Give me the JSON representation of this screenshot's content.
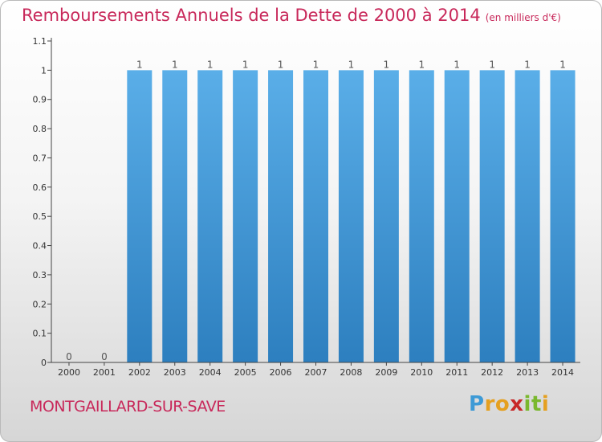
{
  "header": {
    "title": "Remboursements Annuels de la Dette de 2000 à 2014",
    "unit": "(en milliers d'€)"
  },
  "footer": {
    "city": "MONTGAILLARD-SUR-SAVE",
    "logo_text": "Proxiti",
    "logo_letters": [
      {
        "ch": "P",
        "color": "#3d9ad6"
      },
      {
        "ch": "r",
        "color": "#e5a020"
      },
      {
        "ch": "o",
        "color": "#e5a020"
      },
      {
        "ch": "x",
        "color": "#c82828"
      },
      {
        "ch": "i",
        "color": "#7ab82e"
      },
      {
        "ch": "t",
        "color": "#7ab82e"
      },
      {
        "ch": "i",
        "color": "#e5a020"
      }
    ]
  },
  "chart_data": {
    "type": "bar",
    "title": "Remboursements Annuels de la Dette de 2000 à 2014",
    "categories": [
      "2000",
      "2001",
      "2002",
      "2003",
      "2004",
      "2005",
      "2006",
      "2007",
      "2008",
      "2009",
      "2010",
      "2011",
      "2012",
      "2013",
      "2014"
    ],
    "values": [
      0,
      0,
      1,
      1,
      1,
      1,
      1,
      1,
      1,
      1,
      1,
      1,
      1,
      1,
      1
    ],
    "data_labels": [
      "0",
      "0",
      "1",
      "1",
      "1",
      "1",
      "1",
      "1",
      "1",
      "1",
      "1",
      "1",
      "1",
      "1",
      "1"
    ],
    "ylim": [
      0,
      1.1
    ],
    "yticks": [
      "0",
      "0.1",
      "0.2",
      "0.3",
      "0.4",
      "0.5",
      "0.6",
      "0.7",
      "0.8",
      "0.9",
      "1",
      "1.1"
    ],
    "ytick_values": [
      0,
      0.1,
      0.2,
      0.3,
      0.4,
      0.5,
      0.6,
      0.7,
      0.8,
      0.9,
      1,
      1.1
    ],
    "grid": false,
    "colors": {
      "bar_top": "#5aaee8",
      "bar_bottom": "#2d7fbf",
      "axis": "#444444"
    }
  }
}
